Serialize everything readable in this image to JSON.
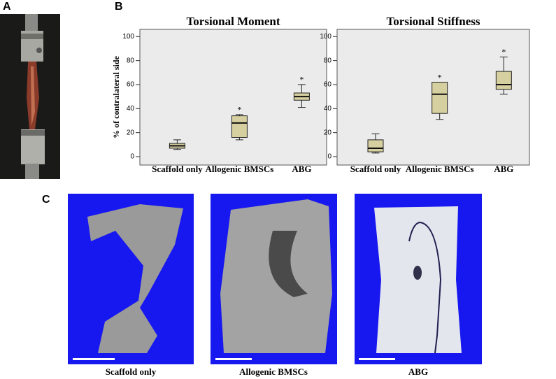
{
  "panels": [
    "A",
    "B",
    "C"
  ],
  "chart_data": [
    {
      "type": "box",
      "title": "Torsional Moment",
      "y_label": "% of contralateral side",
      "categories": [
        "Scaffold only",
        "Allogenic BMSCs",
        "ABG"
      ],
      "values": [
        {
          "min": 6,
          "q1": 7,
          "median": 9,
          "q3": 11,
          "max": 14
        },
        {
          "min": 14,
          "q1": 16,
          "median": 28,
          "q3": 34,
          "max": 35
        },
        {
          "min": 41,
          "q1": 47,
          "median": 50,
          "q3": 53,
          "max": 60
        }
      ],
      "markers": [
        null,
        "*",
        "*"
      ],
      "color": "#d6cfa0",
      "ylim": [
        -7,
        106
      ],
      "yticks": [
        0,
        20,
        40,
        60,
        80,
        100
      ]
    },
    {
      "type": "box",
      "title": "Torsional Stiffness",
      "categories": [
        "Scaffold only",
        "Allogenic BMSCs",
        "ABG"
      ],
      "values": [
        {
          "min": 3,
          "q1": 4,
          "median": 7,
          "q3": 14,
          "max": 19
        },
        {
          "min": 31,
          "q1": 36,
          "median": 52,
          "q3": 62,
          "max": 62
        },
        {
          "min": 52,
          "q1": 56,
          "median": 60,
          "q3": 71,
          "max": 83
        }
      ],
      "markers": [
        null,
        "*",
        "*"
      ],
      "color": "#d6cfa0",
      "ylim": [
        -7,
        106
      ],
      "yticks": [
        0,
        20,
        40,
        60,
        80,
        100
      ]
    }
  ],
  "captions": [
    "Scaffold only",
    "Allogenic BMSCs",
    "ABG"
  ]
}
